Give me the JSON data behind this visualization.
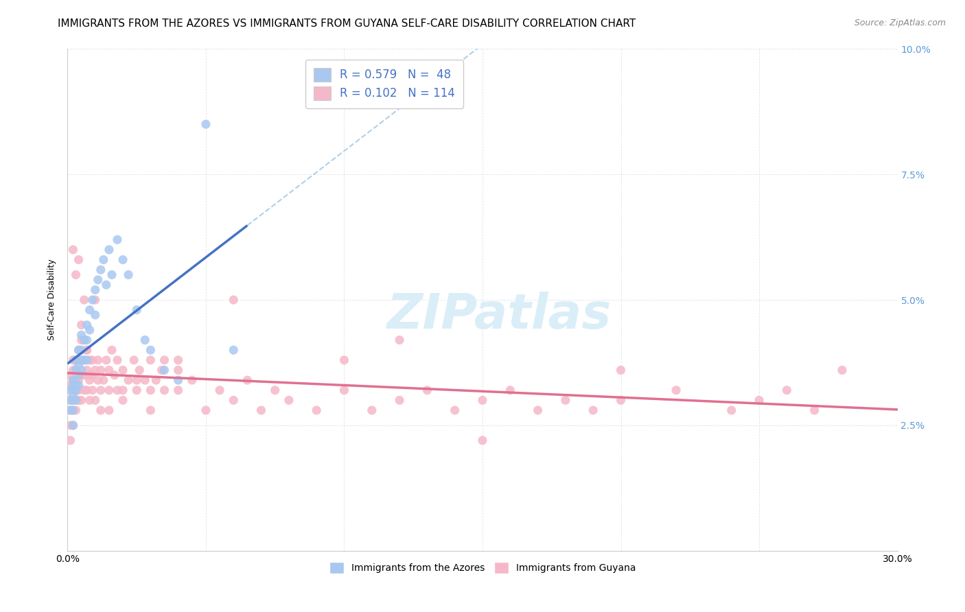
{
  "title": "IMMIGRANTS FROM THE AZORES VS IMMIGRANTS FROM GUYANA SELF-CARE DISABILITY CORRELATION CHART",
  "source": "Source: ZipAtlas.com",
  "ylabel": "Self-Care Disability",
  "xlim": [
    0.0,
    0.3
  ],
  "ylim": [
    0.0,
    0.1
  ],
  "watermark": "ZIPatlas",
  "color_azores": "#a8c8f0",
  "color_guyana": "#f5b8c8",
  "color_line_azores": "#4472c4",
  "color_line_guyana": "#e07090",
  "color_dashed_line": "#b0d0e8",
  "color_right_ticks": "#5b9bd5",
  "background_color": "#ffffff",
  "grid_color": "#e0e0e0",
  "title_fontsize": 11,
  "axis_label_fontsize": 9,
  "tick_fontsize": 10,
  "legend_fontsize": 12,
  "watermark_fontsize": 52,
  "watermark_color": "#daeef8",
  "azores_x": [
    0.001,
    0.001,
    0.001,
    0.002,
    0.002,
    0.002,
    0.002,
    0.002,
    0.002,
    0.003,
    0.003,
    0.003,
    0.003,
    0.003,
    0.004,
    0.004,
    0.004,
    0.004,
    0.005,
    0.005,
    0.005,
    0.005,
    0.006,
    0.006,
    0.007,
    0.007,
    0.007,
    0.008,
    0.008,
    0.009,
    0.01,
    0.01,
    0.011,
    0.012,
    0.013,
    0.014,
    0.015,
    0.016,
    0.018,
    0.02,
    0.022,
    0.025,
    0.028,
    0.03,
    0.035,
    0.04,
    0.05,
    0.06
  ],
  "azores_y": [
    0.03,
    0.028,
    0.032,
    0.033,
    0.03,
    0.028,
    0.025,
    0.034,
    0.031,
    0.032,
    0.036,
    0.033,
    0.03,
    0.038,
    0.035,
    0.04,
    0.037,
    0.033,
    0.038,
    0.043,
    0.04,
    0.036,
    0.042,
    0.038,
    0.045,
    0.042,
    0.038,
    0.048,
    0.044,
    0.05,
    0.052,
    0.047,
    0.054,
    0.056,
    0.058,
    0.053,
    0.06,
    0.055,
    0.062,
    0.058,
    0.055,
    0.048,
    0.042,
    0.04,
    0.036,
    0.034,
    0.085,
    0.04
  ],
  "guyana_x": [
    0.001,
    0.001,
    0.001,
    0.001,
    0.001,
    0.001,
    0.002,
    0.002,
    0.002,
    0.002,
    0.002,
    0.002,
    0.002,
    0.003,
    0.003,
    0.003,
    0.003,
    0.003,
    0.003,
    0.004,
    0.004,
    0.004,
    0.004,
    0.004,
    0.005,
    0.005,
    0.005,
    0.005,
    0.006,
    0.006,
    0.006,
    0.006,
    0.007,
    0.007,
    0.007,
    0.008,
    0.008,
    0.008,
    0.009,
    0.009,
    0.01,
    0.01,
    0.011,
    0.011,
    0.012,
    0.012,
    0.013,
    0.014,
    0.015,
    0.015,
    0.016,
    0.017,
    0.018,
    0.02,
    0.02,
    0.022,
    0.024,
    0.025,
    0.026,
    0.028,
    0.03,
    0.03,
    0.032,
    0.034,
    0.035,
    0.04,
    0.04,
    0.045,
    0.05,
    0.055,
    0.06,
    0.065,
    0.07,
    0.075,
    0.08,
    0.09,
    0.1,
    0.11,
    0.12,
    0.13,
    0.14,
    0.15,
    0.16,
    0.17,
    0.18,
    0.19,
    0.2,
    0.22,
    0.24,
    0.25,
    0.26,
    0.27,
    0.28,
    0.007,
    0.008,
    0.009,
    0.01,
    0.012,
    0.015,
    0.018,
    0.02,
    0.025,
    0.03,
    0.035,
    0.04,
    0.06,
    0.15,
    0.2,
    0.1,
    0.12,
    0.002,
    0.003,
    0.004,
    0.005,
    0.006
  ],
  "guyana_y": [
    0.028,
    0.03,
    0.033,
    0.025,
    0.035,
    0.022,
    0.03,
    0.032,
    0.028,
    0.034,
    0.025,
    0.036,
    0.038,
    0.03,
    0.032,
    0.034,
    0.028,
    0.036,
    0.038,
    0.03,
    0.034,
    0.038,
    0.032,
    0.04,
    0.03,
    0.035,
    0.038,
    0.042,
    0.032,
    0.035,
    0.038,
    0.042,
    0.032,
    0.036,
    0.04,
    0.03,
    0.034,
    0.038,
    0.032,
    0.035,
    0.03,
    0.036,
    0.034,
    0.038,
    0.032,
    0.036,
    0.034,
    0.038,
    0.032,
    0.036,
    0.04,
    0.035,
    0.038,
    0.032,
    0.036,
    0.034,
    0.038,
    0.032,
    0.036,
    0.034,
    0.032,
    0.038,
    0.034,
    0.036,
    0.038,
    0.032,
    0.036,
    0.034,
    0.028,
    0.032,
    0.03,
    0.034,
    0.028,
    0.032,
    0.03,
    0.028,
    0.032,
    0.028,
    0.03,
    0.032,
    0.028,
    0.03,
    0.032,
    0.028,
    0.03,
    0.028,
    0.03,
    0.032,
    0.028,
    0.03,
    0.032,
    0.028,
    0.036,
    0.04,
    0.035,
    0.038,
    0.05,
    0.028,
    0.028,
    0.032,
    0.03,
    0.034,
    0.028,
    0.032,
    0.038,
    0.05,
    0.022,
    0.036,
    0.038,
    0.042,
    0.06,
    0.055,
    0.058,
    0.045,
    0.05
  ]
}
